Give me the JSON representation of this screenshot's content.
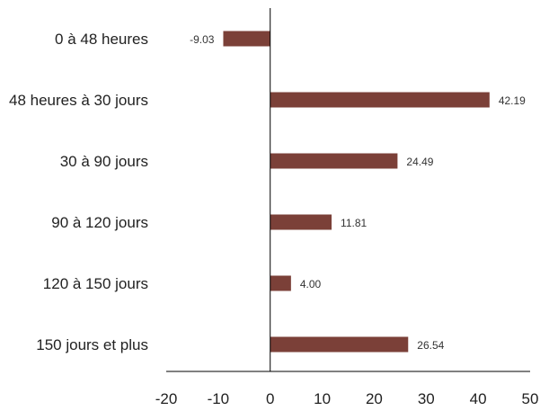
{
  "chart_data": {
    "type": "bar",
    "orientation": "horizontal",
    "categories": [
      "0 à 48 heures",
      "48 heures à 30 jours",
      "30 à 90 jours",
      "90 à 120 jours",
      "120 à 150 jours",
      "150 jours et plus"
    ],
    "values": [
      -9.03,
      42.19,
      24.49,
      11.81,
      4.0,
      26.54
    ],
    "data_labels": [
      "-9.03",
      "42.19",
      "24.49",
      "11.81",
      "4.00",
      "26.54"
    ],
    "xlim": [
      -20,
      50
    ],
    "xticks": [
      -20,
      -10,
      0,
      10,
      20,
      30,
      40,
      50
    ],
    "grid": false,
    "bar_color": "#7b4038"
  }
}
